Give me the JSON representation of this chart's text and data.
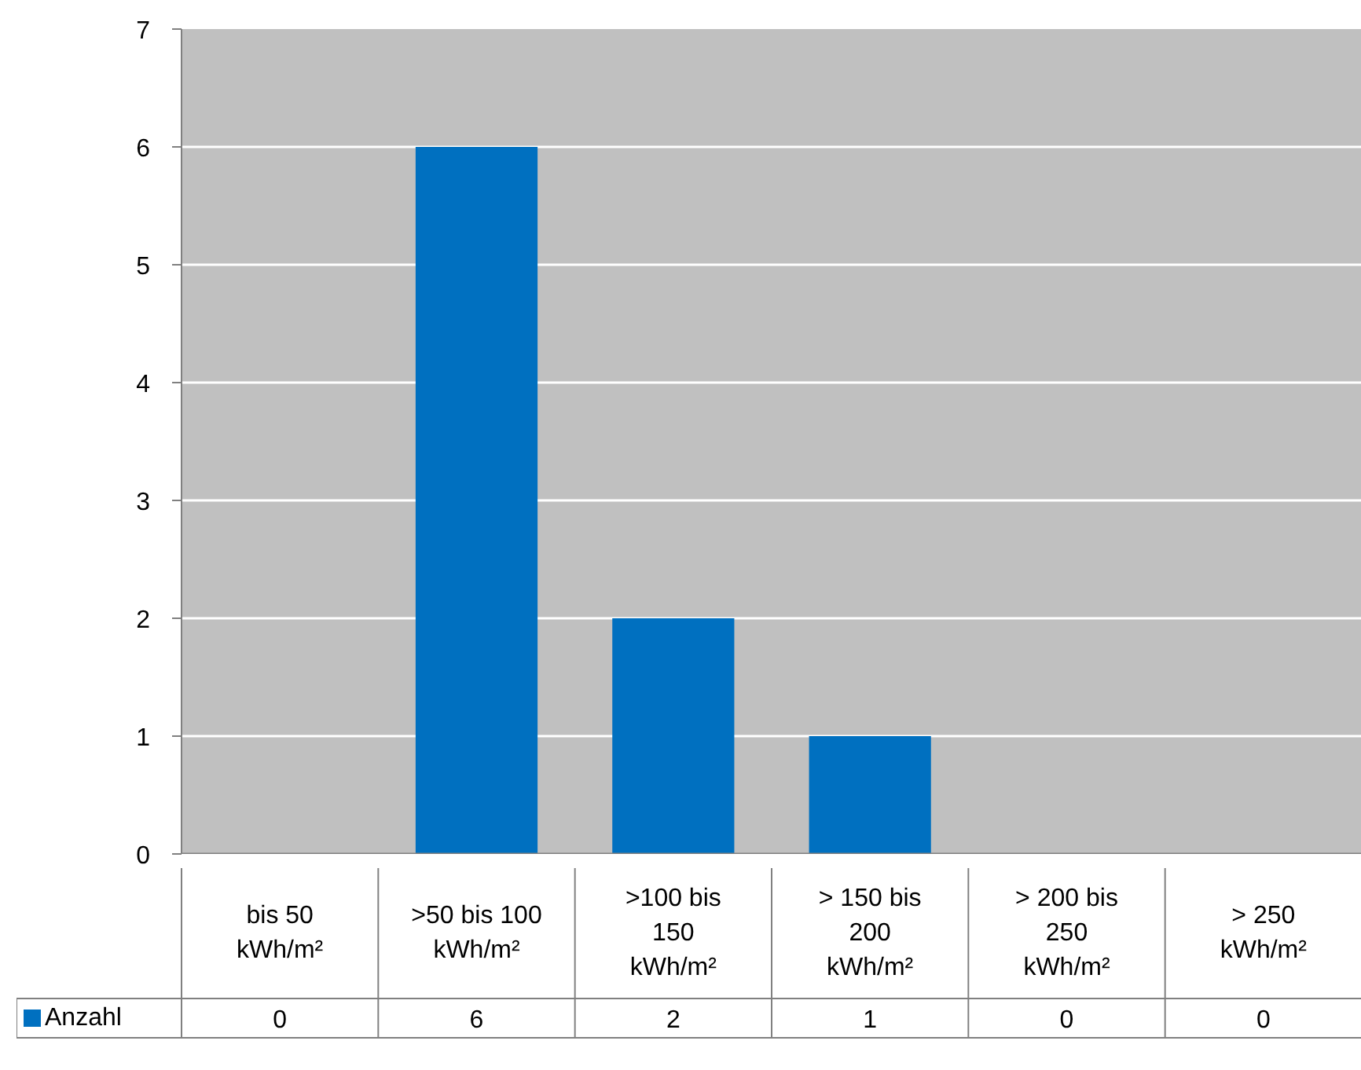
{
  "chart_data": {
    "type": "bar",
    "categories": [
      "bis 50\nkWh/m²",
      ">50 bis 100\nkWh/m²",
      ">100 bis\n150\nkWh/m²",
      "> 150 bis\n200\nkWh/m²",
      "> 200 bis\n250\nkWh/m²",
      "> 250\nkWh/m²"
    ],
    "series": [
      {
        "name": "Anzahl",
        "color": "#0070c0",
        "values": [
          0,
          6,
          2,
          1,
          0,
          0
        ]
      }
    ],
    "ylim": [
      0,
      7
    ],
    "yticks": [
      0,
      1,
      2,
      3,
      4,
      5,
      6,
      7
    ],
    "grid": "y",
    "legend": "bottom left",
    "data_labels": true
  }
}
